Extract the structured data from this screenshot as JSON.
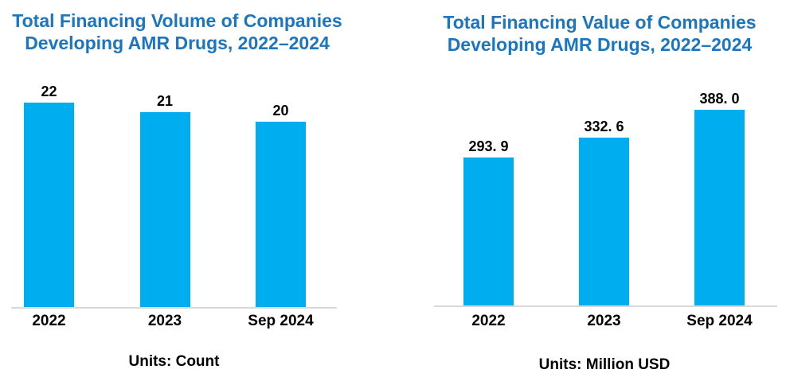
{
  "page": {
    "background_color": "#ffffff",
    "description": "Two side-by-side bar charts about AMR drug company financing"
  },
  "colors": {
    "title_blue": "#1b76bf",
    "bar_cyan": "#00aeef",
    "axis_line_gray": "#d9d9d9",
    "label_black": "#000000"
  },
  "chart_data": [
    {
      "type": "bar",
      "title": "Total Financing Volume of Companies Developing AMR Drugs, 2022–2024",
      "title_lines": [
        "Total Financing Volume of Companies",
        "Developing AMR Drugs, 2022–2024"
      ],
      "categories": [
        "2022",
        "2023",
        "Sep 2024"
      ],
      "values": [
        22,
        21,
        20
      ],
      "value_labels": [
        "22",
        "21",
        "20"
      ],
      "units_note": "Units: Count",
      "xlabel": "",
      "ylabel": "",
      "ylim": [
        0,
        24
      ],
      "bar_color": "#00aeef",
      "grid": false,
      "legend": false,
      "value_labels_position": "above-bars",
      "axis_shown": "x-only"
    },
    {
      "type": "bar",
      "title": "Total Financing Value of Companies Developing AMR Drugs, 2022–2024",
      "title_lines": [
        "Total Financing Value of Companies",
        "Developing AMR Drugs, 2022–2024"
      ],
      "categories": [
        "2022",
        "2023",
        "Sep 2024"
      ],
      "values": [
        293.9,
        332.6,
        388.0
      ],
      "value_labels": [
        "293. 9",
        "332. 6",
        "388. 0"
      ],
      "units_note": "Units: Million USD",
      "xlabel": "",
      "ylabel": "",
      "ylim": [
        0,
        420
      ],
      "bar_color": "#00aeef",
      "grid": false,
      "legend": false,
      "value_labels_position": "above-bars",
      "axis_shown": "x-only"
    }
  ]
}
